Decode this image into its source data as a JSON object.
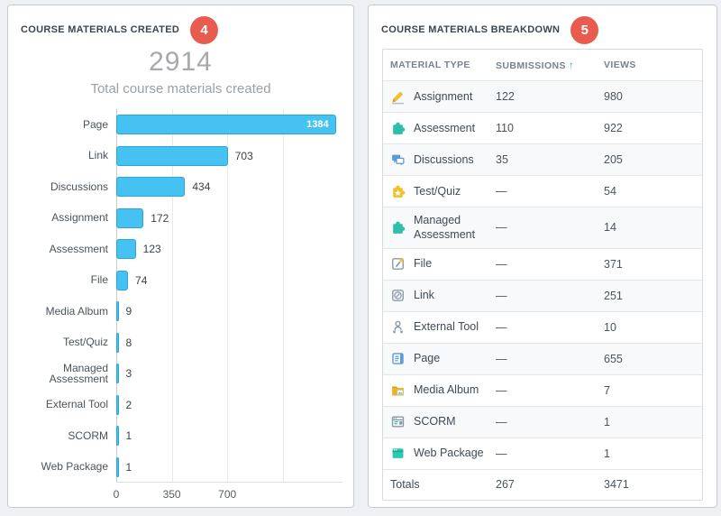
{
  "colors": {
    "page_background": "#eef0f3",
    "panel_border": "#c7ccd0",
    "badge_red": "#e85b4f",
    "bar_fill": "#45c2f1",
    "bar_border": "#2aa7da",
    "sort_arrow_blue": "#2ea9da",
    "shaded_row": "#f8f9fb"
  },
  "left_panel": {
    "title": "COURSE MATERIALS CREATED",
    "badge": "4",
    "total": "2914",
    "subtitle": "Total course materials created"
  },
  "chart_data": {
    "type": "bar",
    "orientation": "horizontal",
    "title": "2914",
    "subtitle": "Total course materials created",
    "categories": [
      "Page",
      "Link",
      "Discussions",
      "Assignment",
      "Assessment",
      "File",
      "Media Album",
      "Test/Quiz",
      "Managed Assessment",
      "External Tool",
      "SCORM",
      "Web Package"
    ],
    "values": [
      1384,
      703,
      434,
      172,
      123,
      74,
      9,
      8,
      3,
      2,
      1,
      1
    ],
    "xlabel": "",
    "ylabel": "",
    "xlim": [
      0,
      1400
    ],
    "x_ticks": [
      0,
      350,
      700
    ],
    "gridlines": [
      0,
      350,
      700,
      1050
    ],
    "grid": true,
    "legend": false
  },
  "right_panel": {
    "title": "COURSE MATERIALS BREAKDOWN",
    "badge": "5",
    "table": {
      "columns": [
        "MATERIAL TYPE",
        "SUBMISSIONS",
        "VIEWS"
      ],
      "sort_column": "SUBMISSIONS",
      "sort_icon": "↑",
      "rows": [
        {
          "icon": "assignment",
          "label": "Assignment",
          "submissions": "122",
          "views": "980"
        },
        {
          "icon": "assessment",
          "label": "Assessment",
          "submissions": "110",
          "views": "922"
        },
        {
          "icon": "discussions",
          "label": "Discussions",
          "submissions": "35",
          "views": "205"
        },
        {
          "icon": "test-quiz",
          "label": "Test/Quiz",
          "submissions": "—",
          "views": "54"
        },
        {
          "icon": "managed-assessment",
          "label": "Managed Assessment",
          "submissions": "—",
          "views": "14"
        },
        {
          "icon": "file",
          "label": "File",
          "submissions": "—",
          "views": "371"
        },
        {
          "icon": "link",
          "label": "Link",
          "submissions": "—",
          "views": "251"
        },
        {
          "icon": "external-tool",
          "label": "External Tool",
          "submissions": "—",
          "views": "10"
        },
        {
          "icon": "page",
          "label": "Page",
          "submissions": "—",
          "views": "655"
        },
        {
          "icon": "media-album",
          "label": "Media Album",
          "submissions": "—",
          "views": "7"
        },
        {
          "icon": "scorm",
          "label": "SCORM",
          "submissions": "—",
          "views": "1"
        },
        {
          "icon": "web-package",
          "label": "Web Package",
          "submissions": "—",
          "views": "1"
        }
      ],
      "totals": {
        "label": "Totals",
        "submissions": "267",
        "views": "3471"
      }
    }
  }
}
